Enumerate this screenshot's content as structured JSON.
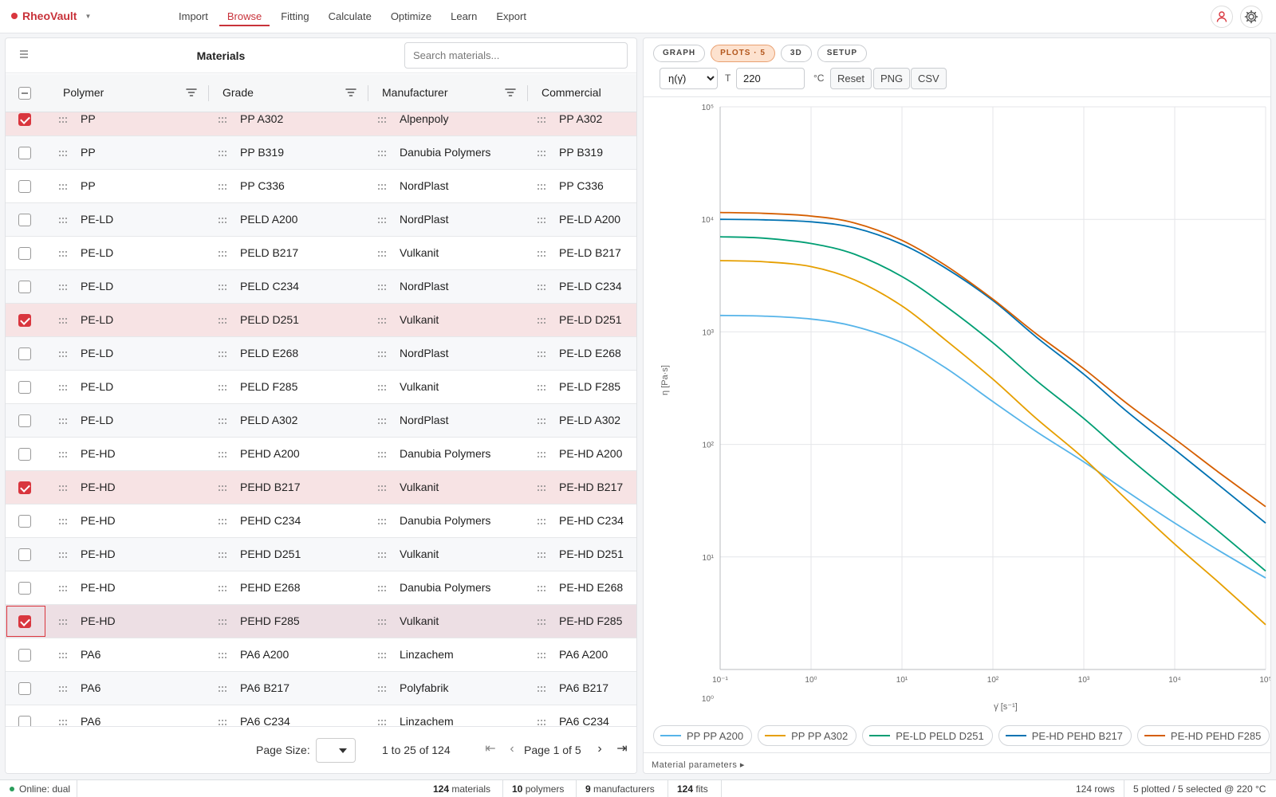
{
  "app": {
    "name": "RheoVault"
  },
  "nav": {
    "items": [
      "Import",
      "Browse",
      "Fitting",
      "Calculate",
      "Optimize",
      "Learn",
      "Export"
    ],
    "active": "Browse"
  },
  "materials": {
    "title": "Materials",
    "search_placeholder": "Search materials...",
    "columns": [
      "Polymer",
      "Grade",
      "Manufacturer",
      "Commercial"
    ],
    "rows": [
      {
        "polymer": "PP",
        "grade": "PP A302",
        "manufacturer": "Alpenpoly",
        "commercial": "PP A302",
        "checked": true
      },
      {
        "polymer": "PP",
        "grade": "PP B319",
        "manufacturer": "Danubia Polymers",
        "commercial": "PP B319",
        "checked": false
      },
      {
        "polymer": "PP",
        "grade": "PP C336",
        "manufacturer": "NordPlast",
        "commercial": "PP C336",
        "checked": false
      },
      {
        "polymer": "PE-LD",
        "grade": "PELD A200",
        "manufacturer": "NordPlast",
        "commercial": "PE-LD A200",
        "checked": false
      },
      {
        "polymer": "PE-LD",
        "grade": "PELD B217",
        "manufacturer": "Vulkanit",
        "commercial": "PE-LD B217",
        "checked": false
      },
      {
        "polymer": "PE-LD",
        "grade": "PELD C234",
        "manufacturer": "NordPlast",
        "commercial": "PE-LD C234",
        "checked": false
      },
      {
        "polymer": "PE-LD",
        "grade": "PELD D251",
        "manufacturer": "Vulkanit",
        "commercial": "PE-LD D251",
        "checked": true
      },
      {
        "polymer": "PE-LD",
        "grade": "PELD E268",
        "manufacturer": "NordPlast",
        "commercial": "PE-LD E268",
        "checked": false
      },
      {
        "polymer": "PE-LD",
        "grade": "PELD F285",
        "manufacturer": "Vulkanit",
        "commercial": "PE-LD F285",
        "checked": false
      },
      {
        "polymer": "PE-LD",
        "grade": "PELD A302",
        "manufacturer": "NordPlast",
        "commercial": "PE-LD A302",
        "checked": false
      },
      {
        "polymer": "PE-HD",
        "grade": "PEHD A200",
        "manufacturer": "Danubia Polymers",
        "commercial": "PE-HD A200",
        "checked": false
      },
      {
        "polymer": "PE-HD",
        "grade": "PEHD B217",
        "manufacturer": "Vulkanit",
        "commercial": "PE-HD B217",
        "checked": true
      },
      {
        "polymer": "PE-HD",
        "grade": "PEHD C234",
        "manufacturer": "Danubia Polymers",
        "commercial": "PE-HD C234",
        "checked": false
      },
      {
        "polymer": "PE-HD",
        "grade": "PEHD D251",
        "manufacturer": "Vulkanit",
        "commercial": "PE-HD D251",
        "checked": false
      },
      {
        "polymer": "PE-HD",
        "grade": "PEHD E268",
        "manufacturer": "Danubia Polymers",
        "commercial": "PE-HD E268",
        "checked": false
      },
      {
        "polymer": "PE-HD",
        "grade": "PEHD F285",
        "manufacturer": "Vulkanit",
        "commercial": "PE-HD F285",
        "checked": true,
        "focused": true
      },
      {
        "polymer": "PA6",
        "grade": "PA6 A200",
        "manufacturer": "Linzachem",
        "commercial": "PA6 A200",
        "checked": false
      },
      {
        "polymer": "PA6",
        "grade": "PA6 B217",
        "manufacturer": "Polyfabrik",
        "commercial": "PA6 B217",
        "checked": false
      },
      {
        "polymer": "PA6",
        "grade": "PA6 C234",
        "manufacturer": "Linzachem",
        "commercial": "PA6 C234",
        "checked": false
      }
    ],
    "pagination": {
      "page_size_label": "Page Size:",
      "range": "1 to 25 of 124",
      "page_text": "Page 1 of 5"
    }
  },
  "plot_panel": {
    "tabs": [
      {
        "label": "GRAPH",
        "active": false
      },
      {
        "label": "PLOTS · 5",
        "active": true
      },
      {
        "label": "3D",
        "active": false
      },
      {
        "label": "SETUP",
        "active": false
      }
    ],
    "quantity_selected": "η(γ̇)",
    "temp_label": "T",
    "temperature": "220",
    "temp_unit": "°C",
    "buttons": [
      "Reset",
      "PNG",
      "CSV"
    ],
    "footer": "Material parameters ▸"
  },
  "chart_data": {
    "type": "line",
    "xlabel": "γ̇ [s⁻¹]",
    "ylabel": "η [Pa·s]",
    "x_scale": "log",
    "y_scale": "log",
    "xlim": [
      0.1,
      100000
    ],
    "ylim": [
      1,
      100000
    ],
    "x_tick_labels": [
      "10⁻¹",
      "10⁰",
      "10¹",
      "10²",
      "10³",
      "10⁴",
      "10⁵"
    ],
    "y_tick_labels": [
      "10⁰",
      "10¹",
      "10²",
      "10³",
      "10⁴",
      "10⁵"
    ],
    "grid": true,
    "legend_position": "bottom",
    "x": [
      0.1,
      0.3,
      1,
      3,
      10,
      30,
      100,
      300,
      1000,
      3000,
      10000,
      30000,
      100000
    ],
    "series": [
      {
        "name": "PP PP A200",
        "color": "#56b4e9",
        "values": [
          1400,
          1380,
          1300,
          1120,
          800,
          480,
          240,
          130,
          70,
          38,
          20,
          11.5,
          6.5
        ]
      },
      {
        "name": "PP PP A302",
        "color": "#e69f00",
        "values": [
          4300,
          4200,
          3800,
          2900,
          1700,
          850,
          380,
          170,
          75,
          32,
          13,
          6,
          2.5
        ]
      },
      {
        "name": "PE-LD PELD D251",
        "color": "#009e73",
        "values": [
          7000,
          6800,
          6100,
          4900,
          3100,
          1700,
          800,
          370,
          170,
          78,
          35,
          17,
          7.5
        ]
      },
      {
        "name": "PE-HD PEHD B217",
        "color": "#0072b2",
        "values": [
          10000,
          9900,
          9500,
          8400,
          6000,
          3700,
          1900,
          900,
          420,
          195,
          90,
          44,
          20
        ]
      },
      {
        "name": "PE-HD PEHD F285",
        "color": "#d55e00",
        "values": [
          11500,
          11300,
          10700,
          9300,
          6500,
          3900,
          1950,
          960,
          470,
          230,
          112,
          57,
          28
        ]
      }
    ]
  },
  "status": {
    "online": "Online: dual",
    "materials_count": "124",
    "materials_label": "materials",
    "polymers_count": "10",
    "polymers_label": "polymers",
    "manufacturers_count": "9",
    "manufacturers_label": "manufacturers",
    "fits_count": "124",
    "fits_label": "fits",
    "rows_text": "124 rows",
    "selection_text": "5 plotted / 5 selected @ 220 °C"
  }
}
